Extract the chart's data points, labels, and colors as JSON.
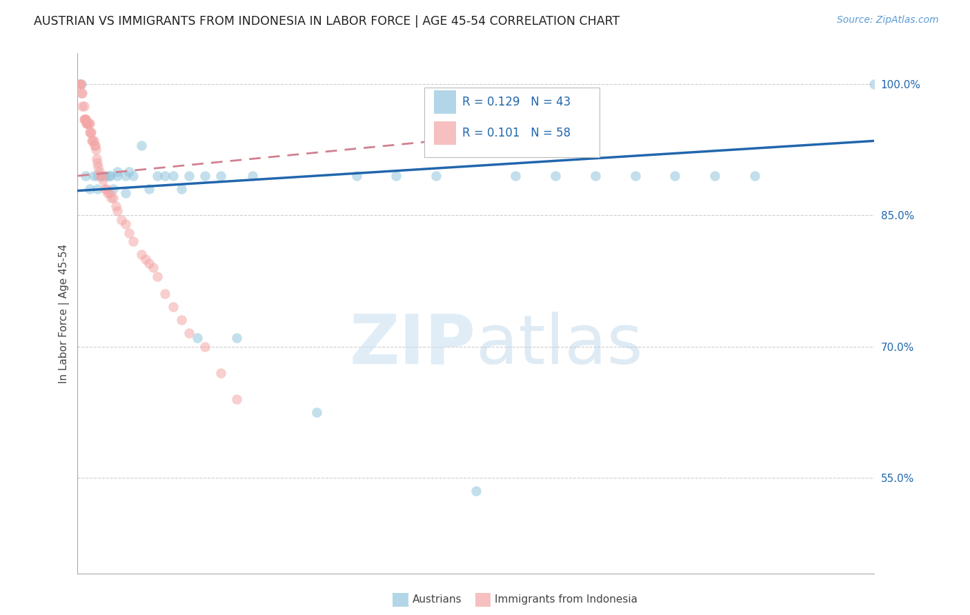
{
  "title": "AUSTRIAN VS IMMIGRANTS FROM INDONESIA IN LABOR FORCE | AGE 45-54 CORRELATION CHART",
  "source": "Source: ZipAtlas.com",
  "ylabel": "In Labor Force | Age 45-54",
  "ylabel_right_ticks": [
    "100.0%",
    "85.0%",
    "70.0%",
    "55.0%"
  ],
  "ylabel_right_values": [
    1.0,
    0.85,
    0.7,
    0.55
  ],
  "xmin": 0.0,
  "xmax": 1.0,
  "ymin": 0.44,
  "ymax": 1.035,
  "legend_blue_R": "0.129",
  "legend_blue_N": "43",
  "legend_pink_R": "0.101",
  "legend_pink_N": "58",
  "blue_color": "#92c5de",
  "pink_color": "#f4a6a6",
  "blue_line_color": "#2166ac",
  "pink_line_color": "#d08090",
  "grid_color": "#cccccc",
  "watermark_zip": "ZIP",
  "watermark_atlas": "atlas",
  "blue_scatter_x": [
    0.005,
    0.01,
    0.015,
    0.02,
    0.025,
    0.025,
    0.03,
    0.03,
    0.035,
    0.04,
    0.04,
    0.045,
    0.05,
    0.05,
    0.06,
    0.06,
    0.065,
    0.07,
    0.08,
    0.09,
    0.1,
    0.11,
    0.12,
    0.13,
    0.14,
    0.15,
    0.16,
    0.18,
    0.2,
    0.22,
    0.3,
    0.35,
    0.4,
    0.45,
    0.5,
    0.55,
    0.6,
    0.65,
    0.7,
    0.75,
    0.8,
    0.85,
    1.0
  ],
  "blue_scatter_y": [
    1.0,
    0.895,
    0.895,
    0.895,
    0.895,
    0.875,
    0.895,
    0.88,
    0.895,
    0.895,
    0.88,
    0.895,
    0.9,
    0.88,
    0.895,
    0.88,
    0.895,
    0.895,
    0.92,
    0.895,
    0.895,
    0.895,
    0.895,
    0.895,
    0.895,
    0.895,
    0.895,
    0.895,
    0.895,
    0.895,
    0.895,
    0.895,
    0.895,
    0.895,
    0.895,
    0.895,
    0.895,
    0.895,
    0.895,
    0.895,
    0.895,
    0.895,
    1.0
  ],
  "blue_scatter_y_real": [
    1.0,
    0.895,
    0.88,
    0.895,
    0.895,
    0.88,
    0.895,
    0.895,
    0.895,
    0.895,
    0.895,
    0.88,
    0.9,
    0.895,
    0.895,
    0.875,
    0.9,
    0.895,
    0.93,
    0.88,
    0.895,
    0.895,
    0.895,
    0.88,
    0.895,
    0.71,
    0.895,
    0.895,
    0.71,
    0.895,
    0.625,
    0.895,
    0.895,
    0.895,
    0.535,
    0.895,
    0.895,
    0.895,
    0.895,
    0.895,
    0.895,
    0.895,
    1.0
  ],
  "pink_scatter_x": [
    0.002,
    0.003,
    0.004,
    0.005,
    0.006,
    0.006,
    0.008,
    0.008,
    0.009,
    0.009,
    0.01,
    0.01,
    0.011,
    0.012,
    0.012,
    0.013,
    0.014,
    0.015,
    0.015,
    0.016,
    0.017,
    0.018,
    0.019,
    0.02,
    0.021,
    0.022,
    0.023,
    0.024,
    0.025,
    0.026,
    0.027,
    0.028,
    0.03,
    0.032,
    0.034,
    0.036,
    0.038,
    0.04,
    0.042,
    0.045,
    0.048,
    0.05,
    0.055,
    0.06,
    0.065,
    0.07,
    0.08,
    0.085,
    0.09,
    0.095,
    0.1,
    0.11,
    0.12,
    0.13,
    0.14,
    0.16,
    0.18,
    0.2
  ],
  "pink_scatter_y": [
    1.0,
    1.0,
    1.0,
    0.99,
    0.99,
    0.975,
    0.975,
    0.96,
    0.96,
    0.96,
    0.96,
    0.96,
    0.955,
    0.955,
    0.955,
    0.955,
    0.955,
    0.955,
    0.945,
    0.945,
    0.945,
    0.935,
    0.935,
    0.935,
    0.93,
    0.93,
    0.925,
    0.915,
    0.91,
    0.905,
    0.9,
    0.895,
    0.895,
    0.89,
    0.88,
    0.88,
    0.875,
    0.875,
    0.87,
    0.87,
    0.86,
    0.855,
    0.845,
    0.84,
    0.83,
    0.82,
    0.805,
    0.8,
    0.795,
    0.79,
    0.78,
    0.76,
    0.745,
    0.73,
    0.715,
    0.7,
    0.67,
    0.64
  ],
  "blue_line_x0": 0.0,
  "blue_line_y0": 0.878,
  "blue_line_x1": 1.0,
  "blue_line_y1": 0.935,
  "pink_line_x0": 0.0,
  "pink_line_y0": 0.895,
  "pink_line_x1": 0.45,
  "pink_line_y1": 0.935
}
